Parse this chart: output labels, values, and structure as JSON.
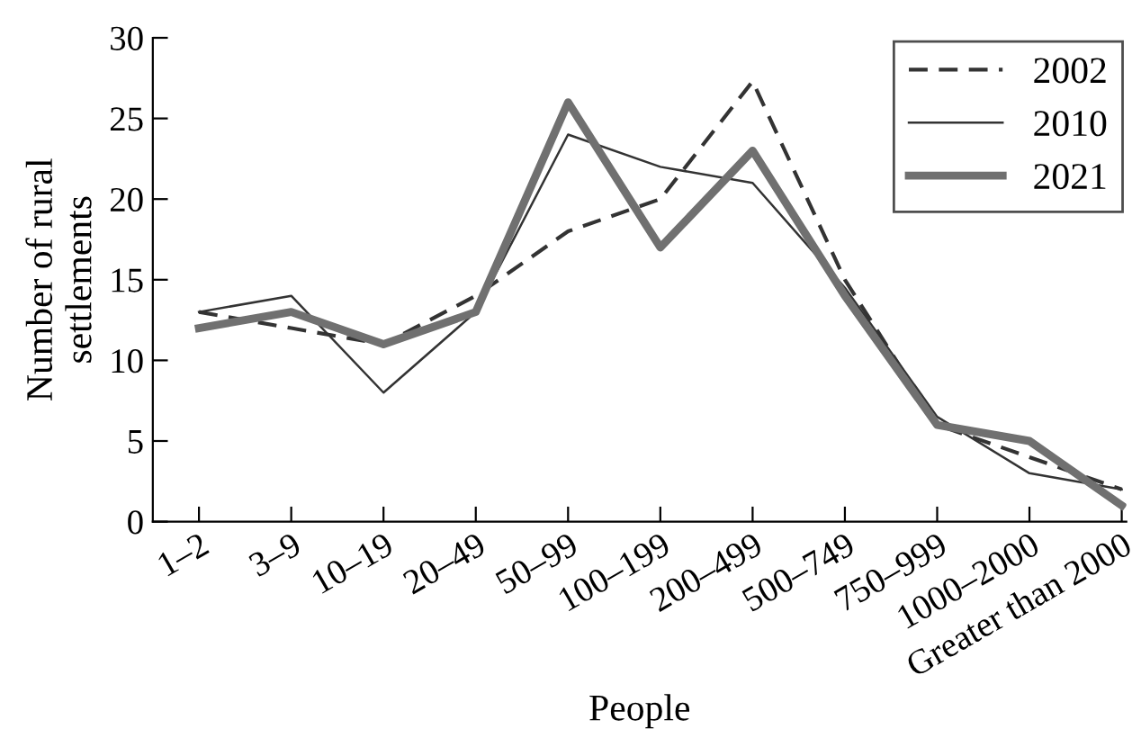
{
  "chart_data": {
    "type": "line",
    "xlabel": "People",
    "ylabel": "Number of rural\nsettlements",
    "categories": [
      "1–2",
      "3–9",
      "10–19",
      "20–49",
      "50–99",
      "100–199",
      "200–499",
      "500–749",
      "750–999",
      "1000–2000",
      "Greater than 2000"
    ],
    "series": [
      {
        "name": "2002",
        "color": "#333333",
        "line_style": "dashed",
        "values": [
          13,
          12,
          11,
          14,
          18,
          20,
          27.3,
          15,
          6,
          4,
          2
        ]
      },
      {
        "name": "2010",
        "color": "#333333",
        "line_style": "solid",
        "values": [
          13,
          14,
          8,
          13,
          24,
          22,
          21,
          14.5,
          6.5,
          3,
          2
        ]
      },
      {
        "name": "2021",
        "color": "#707070",
        "line_style": "solid",
        "values": [
          12,
          13,
          11,
          13,
          26,
          17,
          23,
          14,
          6,
          5,
          1
        ]
      }
    ],
    "ylim": [
      0,
      30
    ],
    "yticks": [
      0,
      5,
      10,
      15,
      20,
      25,
      30
    ],
    "grid": false,
    "legend": "top right",
    "marker": "none"
  }
}
